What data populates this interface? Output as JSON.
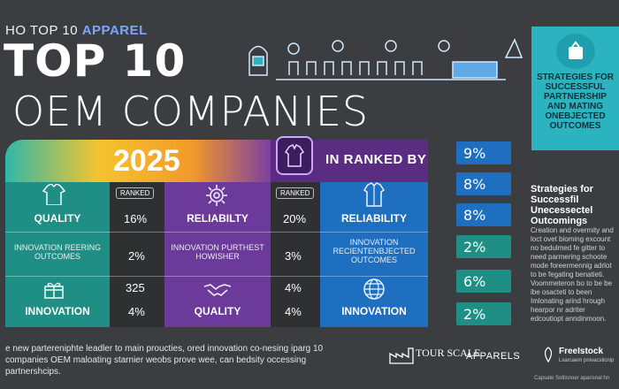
{
  "header": {
    "kicker_prefix": "HO TOP 10 ",
    "kicker_brand": "APPAREL",
    "title_line1": "TOP  10",
    "title_line2": "OEM COMPANIES"
  },
  "callout": {
    "icon": "award-icon",
    "text": "STRATEGIES FOR SUCCESSFUL PARTNERSHIP AND MATING ONEBJECTED OUTCOMES"
  },
  "table": {
    "year": "2025",
    "ranked_by": "IN RANKED BY",
    "col1": {
      "pill": "RANKED",
      "rows": [
        {
          "label": "QUALITY",
          "icon": "shirt-icon"
        },
        {
          "label": "INNOVATION REERING OUTCOMES",
          "icon": "none"
        },
        {
          "label": "INNOVATION",
          "icon": "gift-icon"
        }
      ],
      "values": [
        "16%",
        "2%",
        "325",
        "4%"
      ]
    },
    "col2": {
      "pill": "RANKED",
      "rows": [
        {
          "label": "RELIABILTY",
          "icon": "gear-icon"
        },
        {
          "label": "INNOVATION PURTHEST HOWISHER",
          "icon": "none"
        },
        {
          "label": "QUALITY",
          "icon": "handshake-icon"
        }
      ],
      "values": [
        "20%",
        "3%",
        "4%",
        "4%"
      ]
    },
    "col3": {
      "rows": [
        {
          "label": "RELIABILITY",
          "icon": "garment-icon"
        },
        {
          "label": "INNOVATION RECIENTENBJECTED OUTCOMES",
          "icon": "none"
        },
        {
          "label": "INNOVATION",
          "icon": "globe-icon"
        }
      ]
    }
  },
  "ranks": [
    {
      "value": "9%",
      "color": "#1f6fc0"
    },
    {
      "value": "8%",
      "color": "#1f6fc0"
    },
    {
      "value": "8%",
      "color": "#1f6fc0"
    },
    {
      "value": "2%",
      "color": "#1f8e84"
    },
    {
      "value": "6%",
      "color": "#1f8e84"
    },
    {
      "value": "2%",
      "color": "#1f8e84"
    }
  ],
  "side": {
    "title": "Strategies for Successfil Unecessectel Outcomings",
    "body": "Creation and overmity and loct ovet bioming excount no bedulmed fe gitter to need parmering schoote mode foreermennig adrlot to be fegating benatieti. Voommeteron bo to be be ibe osacteti to been Imlonating arind hrough hearpor nr adriter edcoutiopt anndinmoon."
  },
  "footer": {
    "text": "e new partereniphte leadler to main proucties, ored innovation co-nesing iparg 10 companies OEM maloating starnier weobs prove wee, can bedsity occessing partnershcips.",
    "logo_main": "TOUR SCALE",
    "logo_sub": "APPARELS",
    "fr_main": "FreeIstock",
    "fr_sub": "Lxarcaem pnivacsticnip",
    "caption": "Capsate Sotlisnoer aparisnal hn"
  }
}
